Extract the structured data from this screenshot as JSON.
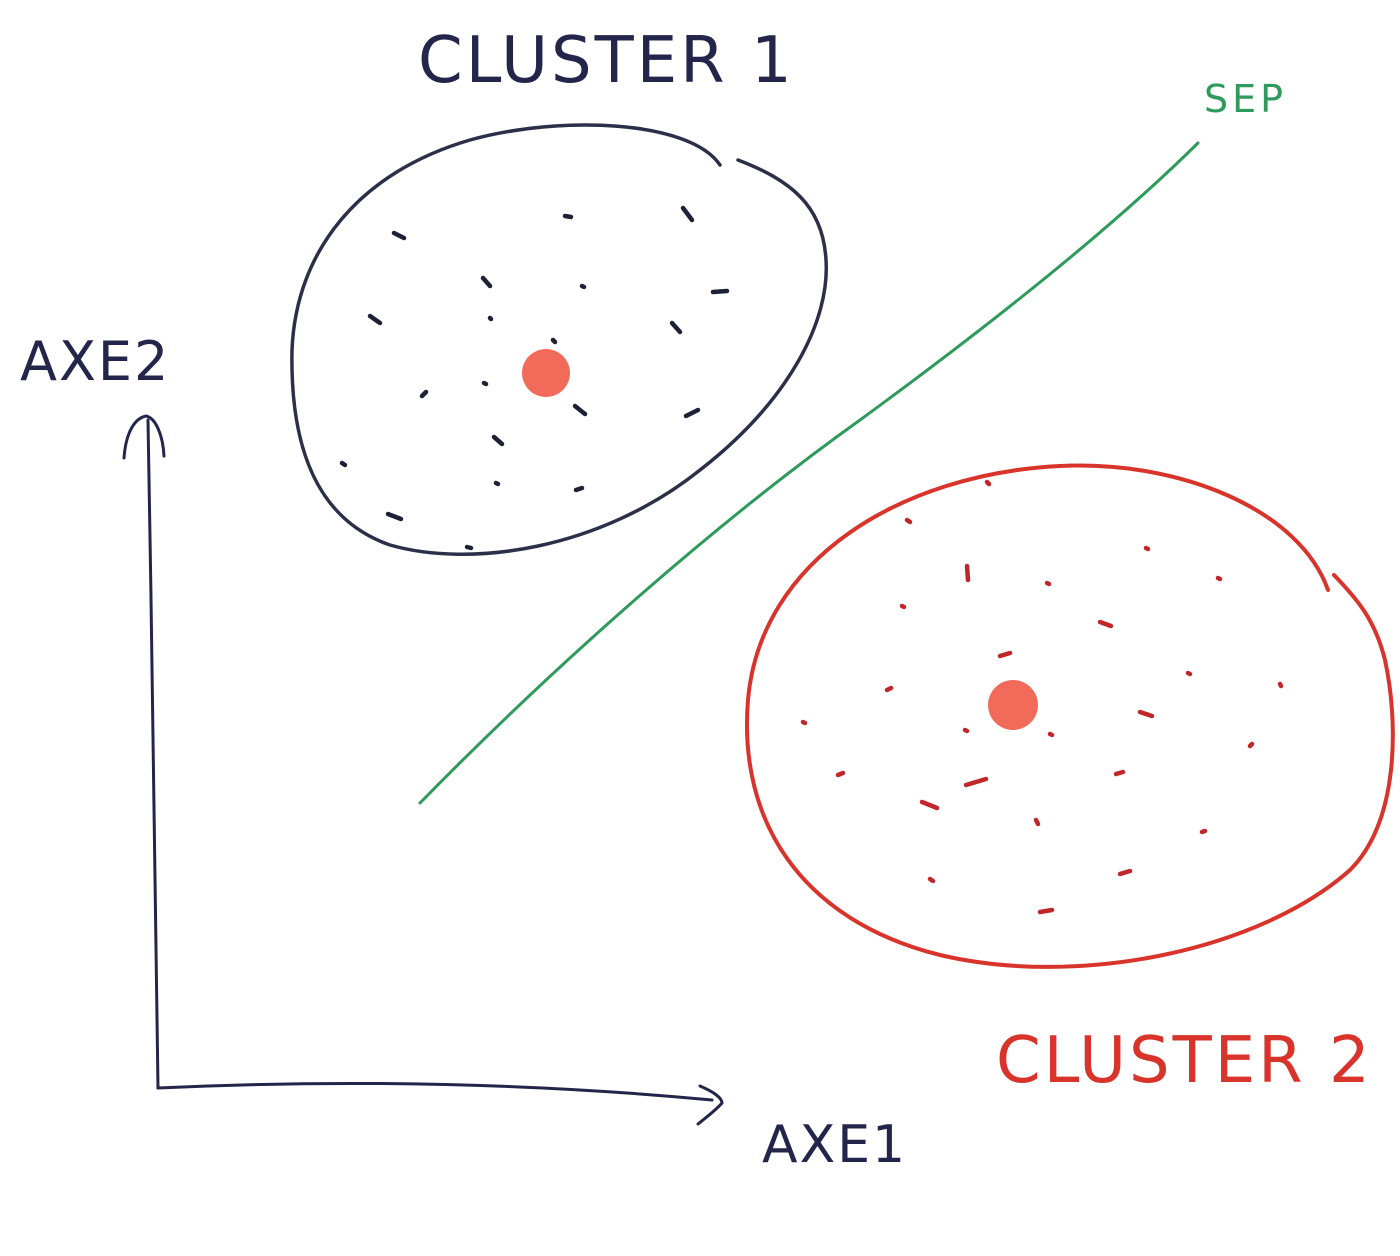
{
  "labels": {
    "cluster1": "CLUSTER 1",
    "cluster2": "CLUSTER 2",
    "separator": "SEP",
    "x_axis": "AXE1",
    "y_axis": "AXE2"
  },
  "colors": {
    "cluster1_ink": "#2b3048",
    "cluster2_ink": "#d9342b",
    "separator_ink": "#2e9a5c",
    "axis_ink": "#23264a",
    "centroid": "#f26a5a",
    "background": "#ffffff"
  }
}
